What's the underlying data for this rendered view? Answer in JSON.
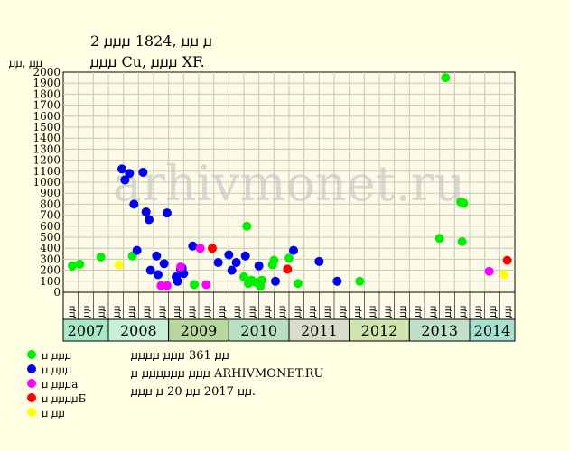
{
  "header": {
    "title_line1": "2 ꙡꙡꙡ 1824, ꙡꙡ ꙡ",
    "title_line2": "ꙡꙡꙡ Cu, ꙡꙡꙡ XF."
  },
  "info": {
    "line1": "ꙡꙡꙡꙡ ꙡꙡꙡ 361 ꙡꙡ",
    "line2": "ꙡ ꙡꙡꙡꙡꙡꙡ ꙡꙡꙡ ARHIVMONET.RU",
    "line3": "ꙡꙡꙡ ꙡ 20 ꙡꙡ 2017 ꙡꙡ."
  },
  "watermark": "arhivmonet.ru",
  "colors": {
    "bg": "#ffffe3",
    "grid": "#c8c8b4",
    "green": "#00ee00",
    "blue": "#0000ee",
    "magenta": "#ff00ff",
    "red": "#ff0000",
    "yellow": "#ffff00"
  },
  "chart_data": {
    "type": "scatter",
    "ylabel": "ꙡꙡ, ꙡꙡ",
    "ylim": [
      0,
      2000
    ],
    "yticks": [
      0,
      100,
      200,
      300,
      400,
      500,
      600,
      700,
      800,
      900,
      1000,
      1100,
      1200,
      1300,
      1400,
      1500,
      1600,
      1700,
      1800,
      1900,
      2000
    ],
    "grid": true,
    "x_sub_labels": [
      "ꙡꙡ",
      "ꙡꙡ",
      "ꙡꙡ",
      "ꙡꙡ",
      "ꙡꙡ",
      "ꙡꙡ",
      "ꙡꙡ",
      "ꙡꙡ",
      "ꙡꙡ",
      "ꙡꙡ",
      "ꙡꙡ",
      "ꙡꙡ",
      "ꙡꙡ",
      "ꙡꙡ",
      "ꙡꙡ",
      "ꙡꙡ",
      "ꙡꙡ",
      "ꙡꙡ",
      "ꙡꙡ",
      "ꙡꙡ",
      "ꙡꙡ",
      "ꙡꙡ",
      "ꙡꙡ",
      "ꙡꙡ",
      "ꙡꙡ",
      "ꙡꙡ",
      "ꙡꙡ",
      "ꙡꙡ",
      "ꙡꙡ",
      "ꙡꙡ"
    ],
    "years": [
      {
        "label": "2007",
        "start": 0,
        "end": 2,
        "color": "#a8e8c8"
      },
      {
        "label": "2008",
        "start": 3,
        "end": 6,
        "color": "#c8f0d8"
      },
      {
        "label": "2009",
        "start": 7,
        "end": 10,
        "color": "#b8d8a0"
      },
      {
        "label": "2010",
        "start": 11,
        "end": 14,
        "color": "#b8e0c0"
      },
      {
        "label": "2011",
        "start": 15,
        "end": 18,
        "color": "#d8dcc8"
      },
      {
        "label": "2012",
        "start": 19,
        "end": 22,
        "color": "#d0e4b0"
      },
      {
        "label": "2013",
        "start": 23,
        "end": 26,
        "color": "#c0e0c8"
      },
      {
        "label": "2014",
        "start": 27,
        "end": 29,
        "color": "#a8e0d0"
      }
    ],
    "series": [
      {
        "name": "ꙡ ꙡꙡꙡ",
        "color": "#00ee00",
        "points": [
          [
            0.1,
            240
          ],
          [
            0.6,
            255
          ],
          [
            2.0,
            320
          ],
          [
            4.1,
            330
          ],
          [
            8.2,
            70
          ],
          [
            11.5,
            140
          ],
          [
            11.8,
            80
          ],
          [
            12.0,
            110
          ],
          [
            12.3,
            90
          ],
          [
            11.7,
            600
          ],
          [
            12.6,
            55
          ],
          [
            12.7,
            110
          ],
          [
            13.4,
            250
          ],
          [
            13.5,
            290
          ],
          [
            14.5,
            310
          ],
          [
            15.1,
            80
          ],
          [
            19.2,
            100
          ],
          [
            24.5,
            490
          ],
          [
            26.0,
            460
          ],
          [
            25.9,
            820
          ],
          [
            26.1,
            810
          ],
          [
            24.9,
            1950
          ]
        ]
      },
      {
        "name": "ꙡ ꙡꙡꙡ",
        "color": "#0000ee",
        "points": [
          [
            3.4,
            1120
          ],
          [
            3.6,
            1020
          ],
          [
            3.9,
            1080
          ],
          [
            4.2,
            800
          ],
          [
            4.8,
            1090
          ],
          [
            5.0,
            730
          ],
          [
            5.2,
            660
          ],
          [
            5.3,
            200
          ],
          [
            4.4,
            380
          ],
          [
            5.7,
            330
          ],
          [
            5.8,
            160
          ],
          [
            6.2,
            260
          ],
          [
            6.4,
            720
          ],
          [
            7.0,
            140
          ],
          [
            7.1,
            100
          ],
          [
            7.3,
            210
          ],
          [
            7.5,
            170
          ],
          [
            7.4,
            220
          ],
          [
            8.1,
            420
          ],
          [
            9.8,
            270
          ],
          [
            10.5,
            340
          ],
          [
            10.7,
            200
          ],
          [
            11.0,
            270
          ],
          [
            11.6,
            330
          ],
          [
            12.5,
            240
          ],
          [
            13.6,
            100
          ],
          [
            14.8,
            380
          ],
          [
            16.5,
            280
          ],
          [
            17.7,
            100
          ]
        ]
      },
      {
        "name": "ꙡ ꙡꙡꙡa",
        "color": "#ff00ff",
        "points": [
          [
            6.0,
            60
          ],
          [
            6.4,
            60
          ],
          [
            7.3,
            230
          ],
          [
            8.6,
            400
          ],
          [
            9.0,
            70
          ],
          [
            27.8,
            190
          ]
        ]
      },
      {
        "name": "ꙡ ꙡꙡꙡꙡБ",
        "color": "#ff0000",
        "points": [
          [
            9.4,
            400
          ],
          [
            14.4,
            210
          ],
          [
            29.0,
            290
          ]
        ]
      },
      {
        "name": "ꙡ ꙡꙡ",
        "color": "#ffff00",
        "points": [
          [
            3.2,
            250
          ],
          [
            28.8,
            160
          ]
        ]
      }
    ]
  }
}
